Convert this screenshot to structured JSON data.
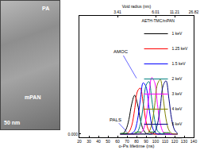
{
  "chart_data": {
    "type": "line",
    "x_label": "o-Ps lifetime (ns)",
    "x2_label": "Void radius (nm)",
    "legend_title": "AETH-TMC/mPAN",
    "legend": "upper right",
    "grid": false,
    "xlim": [
      20,
      140
    ],
    "xticks": [
      20,
      30,
      40,
      50,
      60,
      70,
      80,
      90,
      100,
      110,
      120,
      130,
      140
    ],
    "x2lim": [
      20,
      140
    ],
    "x2ticks": [
      {
        "value": 60,
        "label": "3.41"
      },
      {
        "value": 100,
        "label": "6.01"
      },
      {
        "value": 120,
        "label": "11.21"
      },
      {
        "value": 140,
        "label": "26.82"
      }
    ],
    "ylim": [
      -0.005,
      0.18
    ],
    "yticks": [
      {
        "value": 0,
        "label": "0.000"
      }
    ],
    "annotations": [
      {
        "text": "AMOC"
      },
      {
        "text": "PALS"
      }
    ],
    "image_labels": [
      "PA",
      "mPAN",
      "50 nm"
    ],
    "x": [
      63,
      66,
      69,
      72,
      75,
      78,
      81,
      84,
      87,
      90,
      93,
      96,
      99,
      102,
      105,
      108,
      111,
      114,
      117,
      120,
      123
    ],
    "series": [
      {
        "name": "1 keV",
        "color": "#000000",
        "line_style": "solid",
        "values": [
          0.0,
          0.001,
          0.007,
          0.022,
          0.046,
          0.059,
          0.046,
          0.022,
          0.007,
          0.001,
          0,
          0,
          0,
          0,
          0,
          0,
          0,
          0,
          0,
          0,
          0
        ]
      },
      {
        "name": "1.25 keV",
        "color": "#ff0000",
        "line_style": "solid",
        "values": [
          0,
          0,
          0,
          0.003,
          0.013,
          0.037,
          0.065,
          0.07,
          0.047,
          0.019,
          0.005,
          0.001,
          0,
          0,
          0,
          0,
          0,
          0,
          0,
          0,
          0
        ]
      },
      {
        "name": "1.5 keV",
        "color": "#0000ff",
        "line_style": "solid",
        "values": [
          0,
          0,
          0,
          0,
          0.001,
          0.005,
          0.021,
          0.052,
          0.078,
          0.072,
          0.041,
          0.014,
          0.003,
          0,
          0,
          0,
          0,
          0,
          0,
          0,
          0
        ]
      },
      {
        "name": "2 keV",
        "color": "#008080",
        "line_style": "solid",
        "values": [
          0,
          0,
          0,
          0,
          0,
          0,
          0.003,
          0.015,
          0.042,
          0.074,
          0.08,
          0.053,
          0.022,
          0.005,
          0.001,
          0,
          0,
          0,
          0,
          0,
          0
        ]
      },
      {
        "name": "3 keV",
        "color": "#ff00ff",
        "line_style": "solid",
        "values": [
          0,
          0,
          0,
          0,
          0,
          0,
          0,
          0.001,
          0.006,
          0.023,
          0.057,
          0.086,
          0.079,
          0.045,
          0.016,
          0.003,
          0,
          0,
          0,
          0,
          0
        ]
      },
      {
        "name": "4 keV",
        "color": "#808000",
        "line_style": "solid",
        "values": [
          0,
          0,
          0,
          0,
          0,
          0,
          0,
          0,
          0,
          0,
          0.003,
          0.015,
          0.043,
          0.076,
          0.083,
          0.055,
          0.023,
          0.006,
          0.001,
          0,
          0
        ]
      },
      {
        "name": "5 keV",
        "color": "#000080",
        "line_style": "solid",
        "values": [
          0,
          0,
          0,
          0,
          0,
          0,
          0,
          0,
          0,
          0,
          0,
          0,
          0.003,
          0.015,
          0.042,
          0.074,
          0.081,
          0.054,
          0.022,
          0.006,
          0.001
        ]
      },
      {
        "name": "2 keV",
        "color": "#006400",
        "line_style": "dash",
        "values": [
          0.001,
          0.001,
          0.001,
          0.002,
          0.002,
          0.002,
          0.003,
          0.003,
          0.003,
          0.003,
          0.003,
          0.003,
          0.003,
          0.003,
          0.002,
          0.002,
          0.002,
          0.002,
          0.001,
          0.001,
          0.001
        ]
      }
    ]
  }
}
